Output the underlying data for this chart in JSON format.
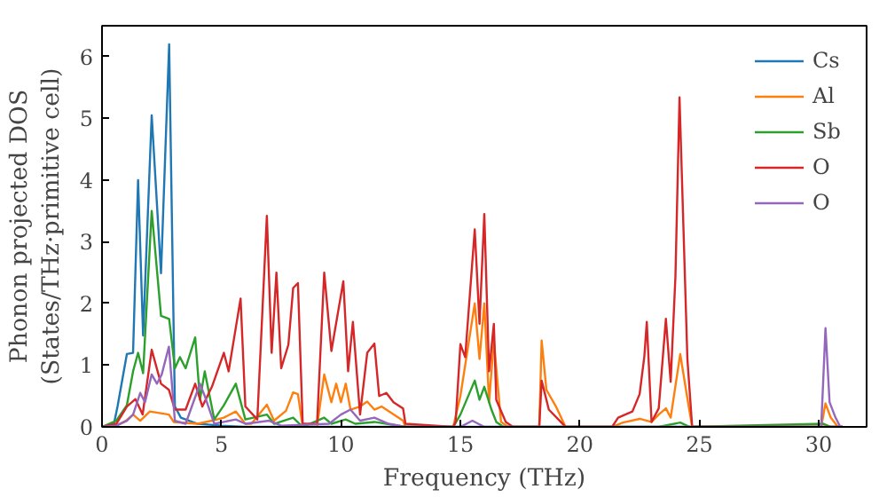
{
  "chart_data": {
    "type": "line",
    "xlabel": "Frequency (THz)",
    "ylabel": "Phonon projected DOS\n(States/THz·primitive cell)",
    "xlim": [
      0,
      32
    ],
    "ylim": [
      0,
      6.5
    ],
    "xticks": [
      0,
      5,
      10,
      15,
      20,
      25,
      30
    ],
    "yticks": [
      0,
      1,
      2,
      3,
      4,
      5,
      6
    ],
    "grid": false,
    "legend": "top right",
    "marker": "none",
    "line_style": "solid",
    "series": [
      {
        "name": "Cs",
        "color": "#1f77b4",
        "x": [
          0,
          0.5,
          0.65,
          1.04,
          1.3,
          1.51,
          1.72,
          2.08,
          2.47,
          2.81,
          3.05,
          3.3,
          4.0,
          5.0,
          6.0,
          31
        ],
        "values": [
          0,
          0.05,
          0.33,
          1.18,
          1.2,
          4.0,
          1.48,
          5.05,
          2.49,
          6.2,
          0.33,
          0.15,
          0.05,
          0.02,
          0,
          0
        ]
      },
      {
        "name": "Al",
        "color": "#ff7f0e",
        "x": [
          0,
          0.6,
          1.0,
          1.3,
          1.6,
          2.0,
          2.8,
          3.0,
          4.0,
          4.6,
          5.1,
          5.6,
          6.0,
          6.25,
          6.9,
          7.2,
          7.7,
          8.0,
          8.2,
          8.4,
          9.0,
          9.3,
          9.6,
          9.8,
          10.0,
          10.2,
          10.4,
          10.8,
          11.1,
          11.4,
          11.7,
          12.6,
          12.7,
          14.7,
          15.0,
          15.6,
          15.8,
          16.0,
          16.2,
          16.4,
          16.7,
          17.0,
          18.3,
          18.4,
          18.6,
          19.0,
          19.4,
          21.35,
          21.8,
          22.5,
          23.0,
          23.3,
          23.6,
          23.8,
          24.2,
          24.5,
          24.7,
          30.1,
          30.28,
          30.5,
          30.8,
          31
        ],
        "values": [
          0,
          0.02,
          0.1,
          0.2,
          0.1,
          0.25,
          0.2,
          0.08,
          0.05,
          0.1,
          0.15,
          0.25,
          0.05,
          0.05,
          0.36,
          0.1,
          0.26,
          0.56,
          0.53,
          0,
          0,
          0.85,
          0.4,
          0.7,
          0.4,
          0.7,
          0.28,
          0.33,
          0.41,
          0.28,
          0.33,
          0.1,
          0,
          0,
          0.5,
          2.0,
          1.1,
          2.0,
          0.4,
          1.4,
          0.08,
          0,
          0,
          1.4,
          0.6,
          0.33,
          0,
          0,
          0.07,
          0.13,
          0.08,
          0.2,
          0.3,
          0.15,
          1.18,
          0.46,
          0,
          0,
          0.38,
          0.15,
          0,
          0
        ]
      },
      {
        "name": "Sb",
        "color": "#2ca02c",
        "x": [
          0,
          0.6,
          1.04,
          1.3,
          1.51,
          1.72,
          2.08,
          2.47,
          2.81,
          3.05,
          3.26,
          3.5,
          3.9,
          4.1,
          4.3,
          4.7,
          5.1,
          5.6,
          6.0,
          6.9,
          7.2,
          8.0,
          8.4,
          9.3,
          9.6,
          10.2,
          10.6,
          11.4,
          12.7,
          14.7,
          15.0,
          15.6,
          15.8,
          16.0,
          16.3,
          16.5,
          16.8,
          23.3,
          24.2,
          24.6,
          30.2,
          30.5,
          31
        ],
        "values": [
          0,
          0.1,
          0.35,
          0.9,
          1.2,
          0.87,
          3.5,
          1.8,
          1.75,
          0.95,
          1.13,
          0.95,
          1.45,
          0.44,
          0.9,
          0.12,
          0.35,
          0.7,
          0.12,
          0.2,
          0.05,
          0.15,
          0,
          0.15,
          0.05,
          0.12,
          0.05,
          0.08,
          0,
          0,
          0.2,
          0.75,
          0.44,
          0.65,
          0.28,
          0.08,
          0,
          0,
          0.07,
          0,
          0.05,
          0,
          0
        ]
      },
      {
        "name": "O",
        "color": "#d62728",
        "x": [
          0,
          0.6,
          1.04,
          1.4,
          1.7,
          2.08,
          2.47,
          2.8,
          3.05,
          3.5,
          3.9,
          4.2,
          4.6,
          5.1,
          5.3,
          5.8,
          6.0,
          6.5,
          6.9,
          7.1,
          7.3,
          7.5,
          7.8,
          8.0,
          8.2,
          8.4,
          9.0,
          9.3,
          9.6,
          10.1,
          10.3,
          10.5,
          10.8,
          11.1,
          11.4,
          11.6,
          11.9,
          12.2,
          12.6,
          12.7,
          14.7,
          14.8,
          15.0,
          15.2,
          15.6,
          15.8,
          16.0,
          16.2,
          16.4,
          16.5,
          16.9,
          17.2,
          18.3,
          18.4,
          18.7,
          19.2,
          19.4,
          21.35,
          21.6,
          22.2,
          22.5,
          22.7,
          22.8,
          23.0,
          23.3,
          23.6,
          23.8,
          24.0,
          24.17,
          24.5,
          24.7,
          31
        ],
        "values": [
          0,
          0.05,
          0.33,
          0.45,
          0.2,
          1.25,
          0.7,
          0.6,
          0.28,
          0.28,
          0.7,
          0.33,
          0.65,
          1.2,
          0.9,
          2.08,
          0.33,
          0.12,
          3.42,
          1.2,
          2.5,
          0.95,
          1.33,
          2.25,
          2.33,
          0.05,
          0.05,
          2.5,
          1.23,
          2.36,
          0.9,
          1.7,
          0.2,
          1.2,
          1.35,
          0.5,
          0.55,
          0.4,
          0.3,
          0.05,
          0,
          0.08,
          1.34,
          1.13,
          3.2,
          1.67,
          3.45,
          0.9,
          1.67,
          0.44,
          0.08,
          0,
          0,
          0.75,
          0.28,
          0.08,
          0,
          0,
          0.15,
          0.25,
          0.53,
          1.15,
          1.7,
          0.08,
          0.3,
          1.75,
          0.73,
          2.44,
          5.34,
          1.1,
          0,
          0
        ]
      },
      {
        "name": "O",
        "color": "#9467bd",
        "x": [
          0,
          0.6,
          1.04,
          1.3,
          1.6,
          1.8,
          2.08,
          2.3,
          2.5,
          2.8,
          3.05,
          3.5,
          4.1,
          4.3,
          4.7,
          5.6,
          6.0,
          7.0,
          7.5,
          9.5,
          10.0,
          10.4,
          10.8,
          11.4,
          12.0,
          12.7,
          15.0,
          15.5,
          16.0,
          30.1,
          30.28,
          30.45,
          30.7,
          30.9,
          31
        ],
        "values": [
          0,
          0.02,
          0.1,
          0.2,
          0.55,
          0.4,
          0.85,
          0.7,
          0.85,
          1.3,
          0.1,
          0.05,
          0.7,
          0.5,
          0.05,
          0.12,
          0.05,
          0.1,
          0.02,
          0.05,
          0.2,
          0.28,
          0.1,
          0.15,
          0.05,
          0,
          0,
          0.1,
          0,
          0,
          1.6,
          0.4,
          0.15,
          0,
          0
        ]
      }
    ]
  }
}
